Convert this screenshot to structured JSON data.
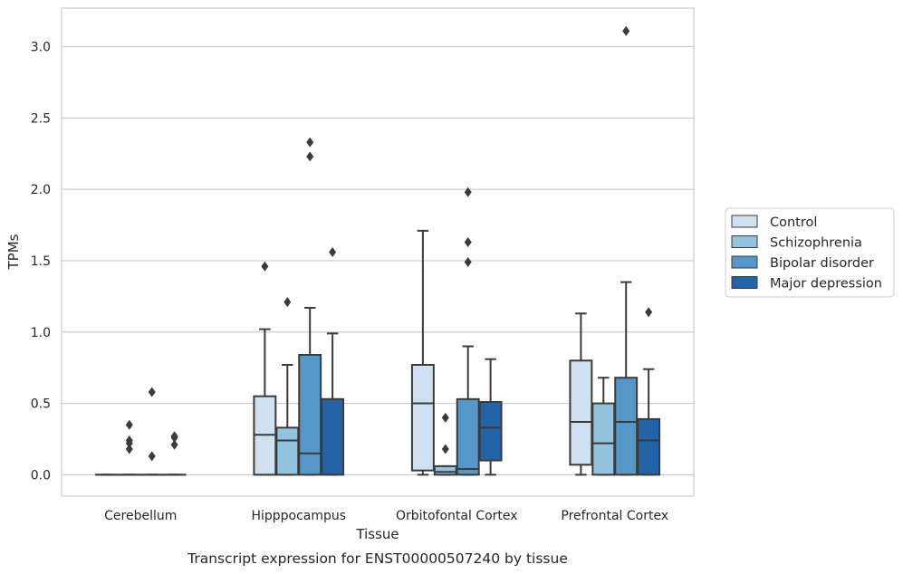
{
  "chart_data": {
    "type": "box",
    "title": "",
    "caption": "Transcript expression for ENST00000507240 by tissue",
    "xlabel": "Tissue",
    "ylabel": "TPMs",
    "ylim": [
      -0.15,
      3.27
    ],
    "yticks": [
      "0.0",
      "0.5",
      "1.0",
      "1.5",
      "2.0",
      "2.5",
      "3.0"
    ],
    "grid": "horizontal",
    "legend_position": "right",
    "categories": [
      "Cerebellum",
      "Hipppocampus",
      "Orbitofontal Cortex",
      "Prefrontal Cortex"
    ],
    "series": [
      {
        "name": "Control",
        "color": "#cfe0f1",
        "boxes": [
          {
            "q1": 0.0,
            "median": 0.0,
            "q3": 0.0,
            "whislo": 0.0,
            "whishi": 0.0,
            "fliers": []
          },
          {
            "q1": 0.0,
            "median": 0.28,
            "q3": 0.55,
            "whislo": 0.0,
            "whishi": 1.02,
            "fliers": [
              1.46
            ]
          },
          {
            "q1": 0.03,
            "median": 0.5,
            "q3": 0.77,
            "whislo": 0.0,
            "whishi": 1.71,
            "fliers": []
          },
          {
            "q1": 0.07,
            "median": 0.37,
            "q3": 0.8,
            "whislo": 0.0,
            "whishi": 1.13,
            "fliers": []
          }
        ]
      },
      {
        "name": "Schizophrenia",
        "color": "#93c3df",
        "boxes": [
          {
            "q1": 0.0,
            "median": 0.0,
            "q3": 0.0,
            "whislo": 0.0,
            "whishi": 0.0,
            "fliers": [
              0.35,
              0.22,
              0.24,
              0.18
            ]
          },
          {
            "q1": 0.0,
            "median": 0.24,
            "q3": 0.33,
            "whislo": 0.0,
            "whishi": 0.77,
            "fliers": [
              1.21
            ]
          },
          {
            "q1": 0.0,
            "median": 0.02,
            "q3": 0.06,
            "whislo": 0.0,
            "whishi": 0.06,
            "fliers": [
              0.4,
              0.18
            ]
          },
          {
            "q1": 0.0,
            "median": 0.22,
            "q3": 0.5,
            "whislo": 0.0,
            "whishi": 0.68,
            "fliers": []
          }
        ]
      },
      {
        "name": "Bipolar disorder",
        "color": "#5597c7",
        "boxes": [
          {
            "q1": 0.0,
            "median": 0.0,
            "q3": 0.0,
            "whislo": 0.0,
            "whishi": 0.0,
            "fliers": [
              0.58,
              0.13
            ]
          },
          {
            "q1": 0.0,
            "median": 0.15,
            "q3": 0.84,
            "whislo": 0.0,
            "whishi": 1.17,
            "fliers": [
              2.33,
              2.23
            ]
          },
          {
            "q1": 0.0,
            "median": 0.04,
            "q3": 0.53,
            "whislo": 0.0,
            "whishi": 0.9,
            "fliers": [
              1.98,
              1.63,
              1.49
            ]
          },
          {
            "q1": 0.0,
            "median": 0.37,
            "q3": 0.68,
            "whislo": 0.0,
            "whishi": 1.35,
            "fliers": [
              3.11
            ]
          }
        ]
      },
      {
        "name": "Major depression",
        "color": "#2463a6",
        "boxes": [
          {
            "q1": 0.0,
            "median": 0.0,
            "q3": 0.0,
            "whislo": 0.0,
            "whishi": 0.0,
            "fliers": [
              0.27,
              0.26,
              0.21
            ]
          },
          {
            "q1": 0.0,
            "median": 0.53,
            "q3": 0.53,
            "whislo": 0.0,
            "whishi": 0.99,
            "fliers": [
              1.56
            ]
          },
          {
            "q1": 0.1,
            "median": 0.33,
            "q3": 0.51,
            "whislo": 0.0,
            "whishi": 0.81,
            "fliers": []
          },
          {
            "q1": 0.0,
            "median": 0.24,
            "q3": 0.39,
            "whislo": 0.0,
            "whishi": 0.74,
            "fliers": [
              1.14
            ]
          }
        ]
      }
    ]
  }
}
